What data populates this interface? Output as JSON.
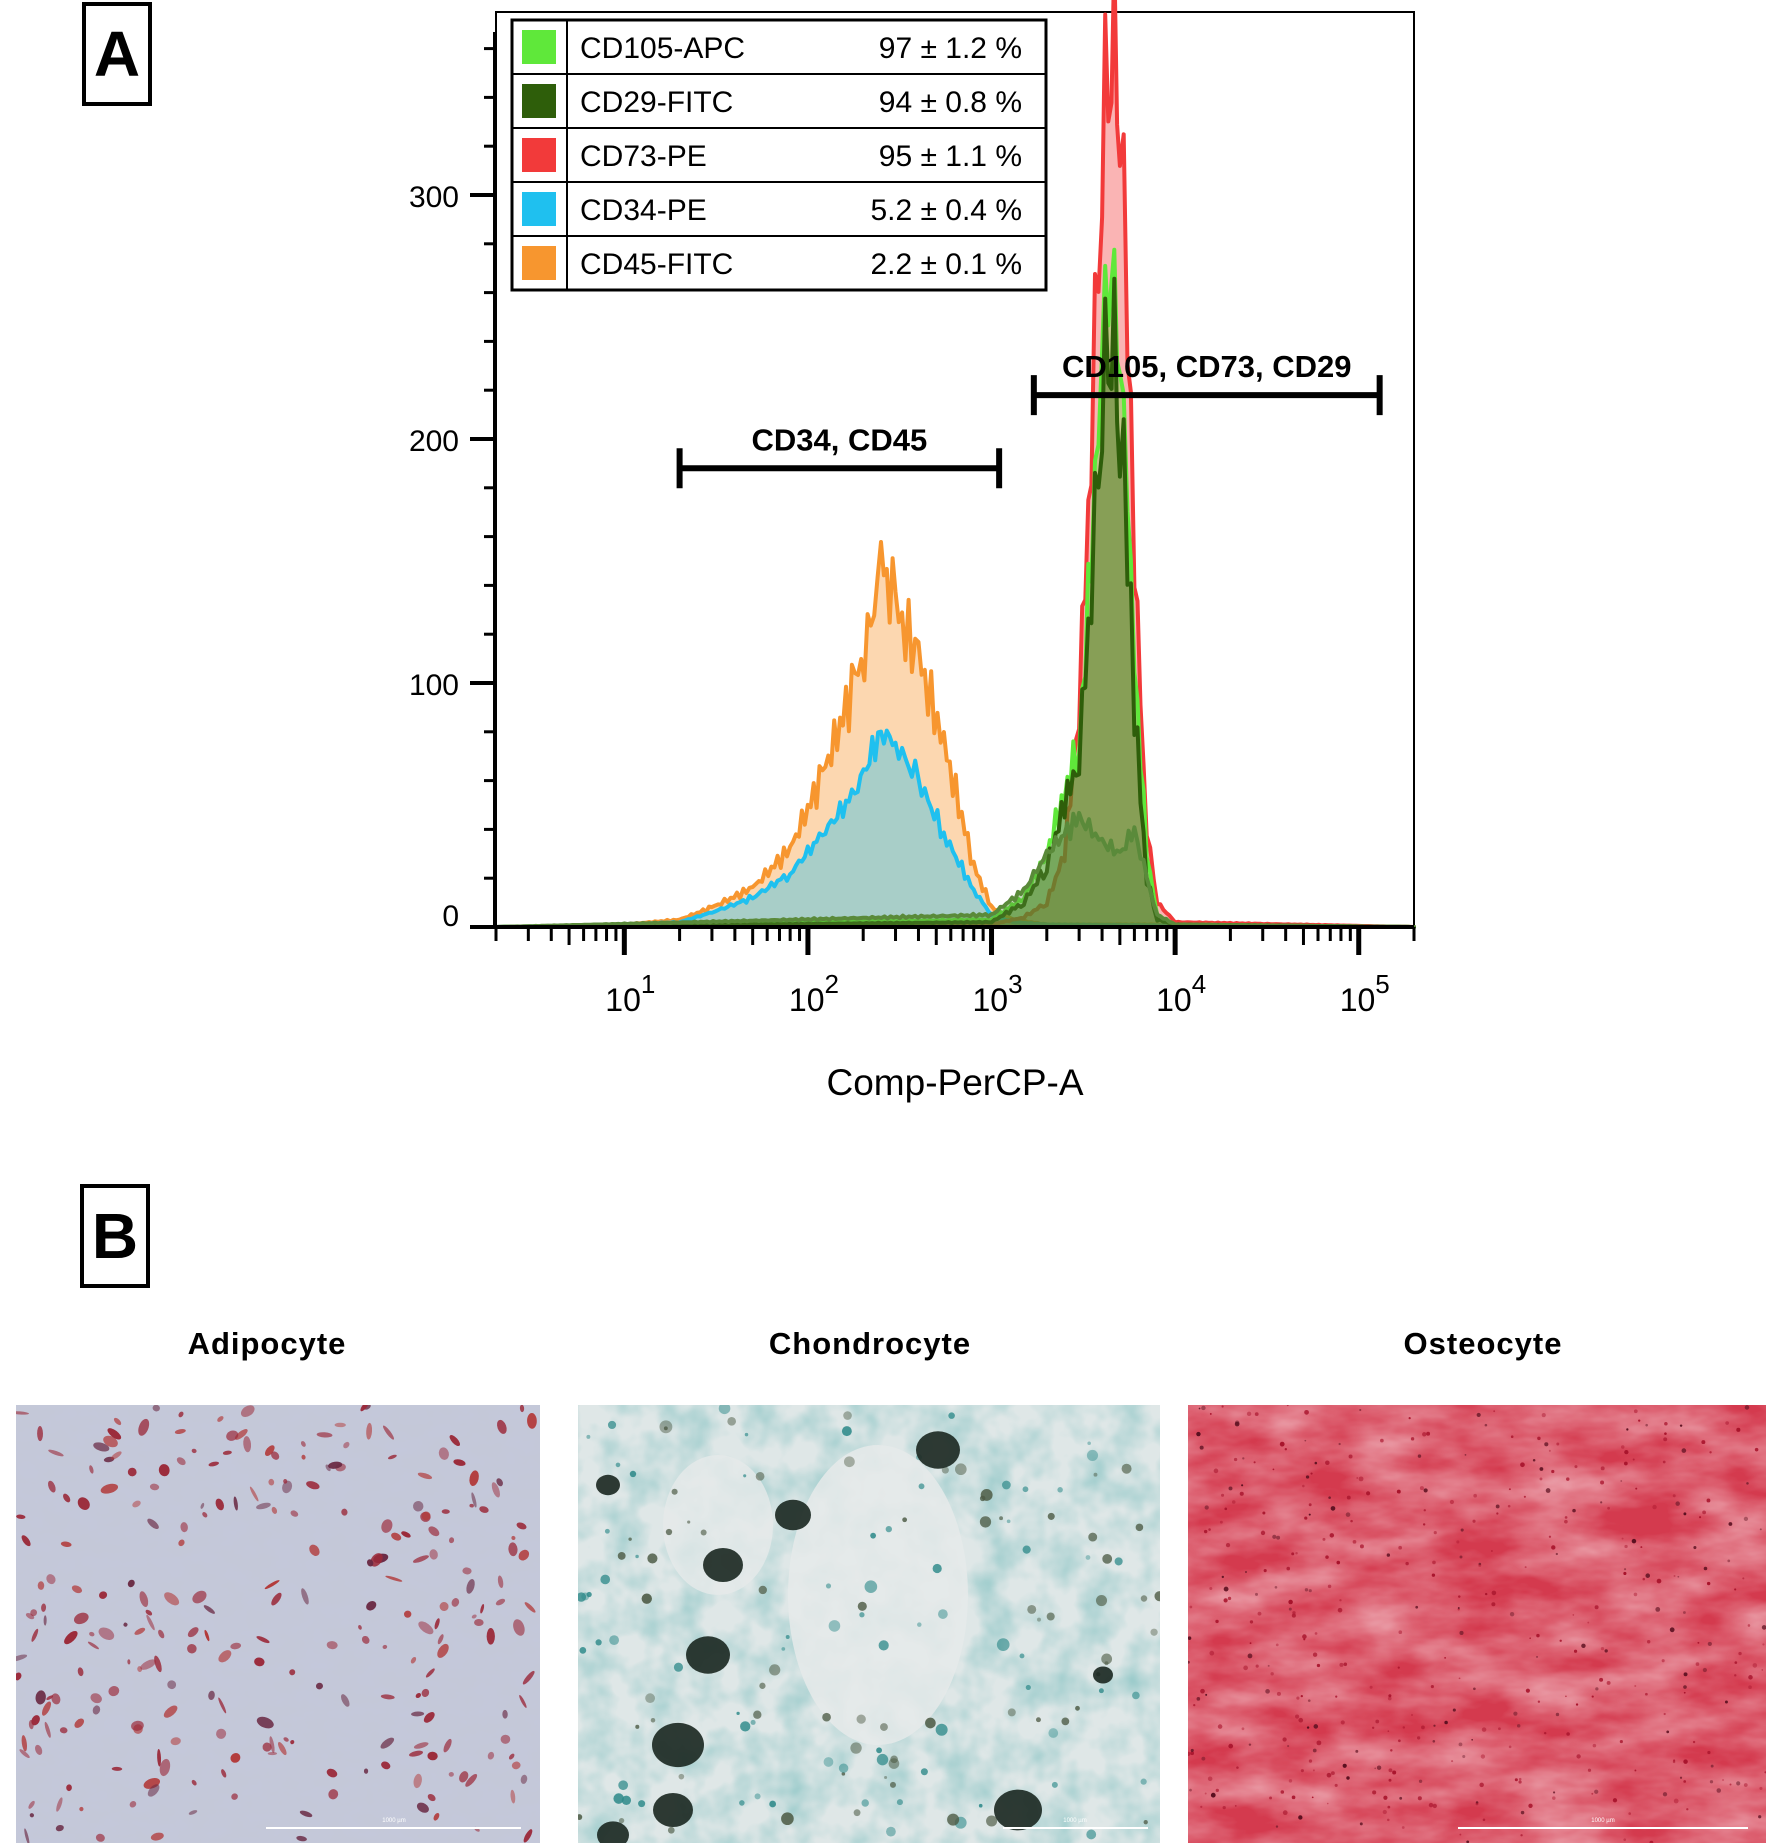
{
  "panels": {
    "a_label": "A",
    "b_label": "B"
  },
  "chart_data": {
    "type": "area",
    "title": "",
    "xlabel": "Comp-PerCP-A",
    "ylabel": "",
    "xscale": "log",
    "xlim": [
      2,
      200000
    ],
    "ylim": [
      0,
      375
    ],
    "y_ticks": [
      0,
      100,
      200,
      300
    ],
    "x_ticks": [
      {
        "base": "10",
        "exp": "1",
        "value": 10
      },
      {
        "base": "10",
        "exp": "2",
        "value": 100
      },
      {
        "base": "10",
        "exp": "3",
        "value": 1000
      },
      {
        "base": "10",
        "exp": "4",
        "value": 10000
      },
      {
        "base": "10",
        "exp": "5",
        "value": 100000
      }
    ],
    "legend_position": "top-left",
    "legend": [
      {
        "name": "CD105-APC",
        "value": "97 ± 1.2 %",
        "color": "#5fe83a"
      },
      {
        "name": "CD29-FITC",
        "value": "94 ± 0.8 %",
        "color": "#2e5e0a"
      },
      {
        "name": "CD73-PE",
        "value": "95 ± 1.1 %",
        "color": "#f23a3a"
      },
      {
        "name": "CD34-PE",
        "value": "5.2 ± 0.4 %",
        "color": "#1fc0ef"
      },
      {
        "name": "CD45-FITC",
        "value": "2.2 ± 0.1 %",
        "color": "#f7962f"
      }
    ],
    "gates": [
      {
        "label": "CD34, CD45",
        "x": [
          20,
          1100
        ],
        "y": 188
      },
      {
        "label": "CD105, CD73, CD29",
        "x": [
          1700,
          130000
        ],
        "y": 218
      }
    ],
    "series": [
      {
        "color": "#f7962f",
        "x": [
          2,
          10,
          20,
          30,
          50,
          80,
          120,
          180,
          220,
          250,
          300,
          400,
          550,
          800,
          1000,
          1300,
          2000,
          5000,
          10000,
          200000
        ],
        "y": [
          0,
          1,
          3,
          8,
          16,
          32,
          62,
          100,
          118,
          150,
          130,
          110,
          75,
          25,
          8,
          3,
          1,
          1,
          1,
          0
        ]
      },
      {
        "color": "#1fc0ef",
        "x": [
          2,
          10,
          20,
          30,
          50,
          80,
          120,
          180,
          250,
          300,
          400,
          550,
          800,
          1000,
          1300,
          2000,
          200000
        ],
        "y": [
          0,
          1,
          2,
          6,
          12,
          22,
          38,
          55,
          80,
          75,
          60,
          38,
          15,
          5,
          2,
          1,
          0
        ]
      },
      {
        "color": "#f23a3a",
        "x": [
          2,
          1000,
          1500,
          2000,
          2500,
          3000,
          3500,
          4000,
          4500,
          5000,
          5500,
          6000,
          7000,
          8000,
          10000,
          200000
        ],
        "y": [
          0,
          1,
          4,
          10,
          30,
          90,
          200,
          320,
          370,
          340,
          250,
          150,
          40,
          10,
          2,
          0
        ]
      },
      {
        "color": "#5fe83a",
        "x": [
          2,
          1000,
          1500,
          2000,
          2500,
          3000,
          3500,
          4000,
          4500,
          5000,
          5500,
          6000,
          7000,
          8000,
          10000,
          200000
        ],
        "y": [
          0,
          3,
          12,
          30,
          55,
          75,
          150,
          250,
          280,
          240,
          180,
          110,
          30,
          5,
          1,
          0
        ]
      },
      {
        "color": "#2e5e0a",
        "x": [
          2,
          1000,
          1500,
          2000,
          2500,
          3000,
          3500,
          4000,
          4500,
          5000,
          5500,
          6000,
          7000,
          8000,
          10000,
          200000
        ],
        "y": [
          0,
          2,
          10,
          25,
          50,
          70,
          140,
          220,
          250,
          210,
          160,
          90,
          20,
          3,
          1,
          0
        ]
      },
      {
        "color": "#5a8a3a",
        "x": [
          2,
          1000,
          1500,
          2000,
          3000,
          4000,
          5000,
          6000,
          7000,
          8000,
          10000,
          200000
        ],
        "y": [
          0,
          5,
          15,
          30,
          45,
          35,
          30,
          40,
          20,
          5,
          1,
          0
        ]
      }
    ]
  },
  "images": [
    {
      "title": "Adipocyte",
      "scale_text": "1000 µm"
    },
    {
      "title": "Chondrocyte",
      "scale_text": "1000 µm"
    },
    {
      "title": "Osteocyte",
      "scale_text": "1000 µm"
    }
  ]
}
